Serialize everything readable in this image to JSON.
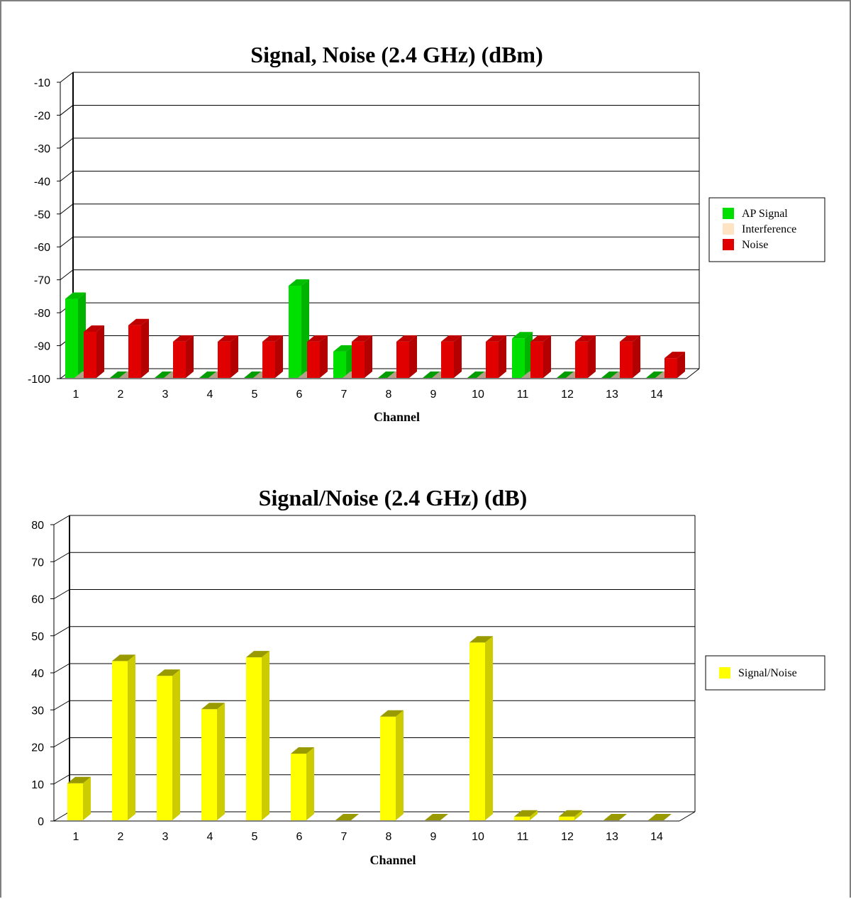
{
  "chart_data": [
    {
      "type": "bar",
      "title": "Signal, Noise (2.4 GHz) (dBm)",
      "xlabel": "Channel",
      "ylabel": "",
      "ylim": [
        -100,
        -10
      ],
      "yticks": [
        -10,
        -20,
        -30,
        -40,
        -50,
        -60,
        -70,
        -80,
        -90,
        -100
      ],
      "categories": [
        "1",
        "2",
        "3",
        "4",
        "5",
        "6",
        "7",
        "8",
        "9",
        "10",
        "11",
        "12",
        "13",
        "14"
      ],
      "grid": true,
      "legend_position": "right",
      "series": [
        {
          "name": "AP Signal",
          "color": "#00e000",
          "values": [
            -76,
            -100,
            -100,
            -100,
            -100,
            -72,
            -92,
            -100,
            -100,
            -100,
            -88,
            -100,
            -100,
            -100
          ]
        },
        {
          "name": "Interference",
          "color": "#ffe4c4",
          "values": [
            -100,
            -100,
            -100,
            -100,
            -100,
            -100,
            -100,
            -100,
            -100,
            -100,
            -100,
            -100,
            -100,
            -100
          ]
        },
        {
          "name": "Noise",
          "color": "#e00000",
          "values": [
            -86,
            -84,
            -89,
            -89,
            -89,
            -89,
            -89,
            -89,
            -89,
            -89,
            -89,
            -89,
            -89,
            -94
          ]
        }
      ]
    },
    {
      "type": "bar",
      "title": "Signal/Noise (2.4 GHz) (dB)",
      "xlabel": "Channel",
      "ylabel": "",
      "ylim": [
        0,
        80
      ],
      "yticks": [
        80,
        70,
        60,
        50,
        40,
        30,
        20,
        10,
        0
      ],
      "categories": [
        "1",
        "2",
        "3",
        "4",
        "5",
        "6",
        "7",
        "8",
        "9",
        "10",
        "11",
        "12",
        "13",
        "14"
      ],
      "grid": true,
      "legend_position": "right",
      "series": [
        {
          "name": "Signal/Noise",
          "color": "#ffff00",
          "values": [
            10,
            43,
            39,
            30,
            44,
            18,
            0,
            28,
            0,
            48,
            1,
            1,
            0,
            0
          ]
        }
      ]
    }
  ]
}
